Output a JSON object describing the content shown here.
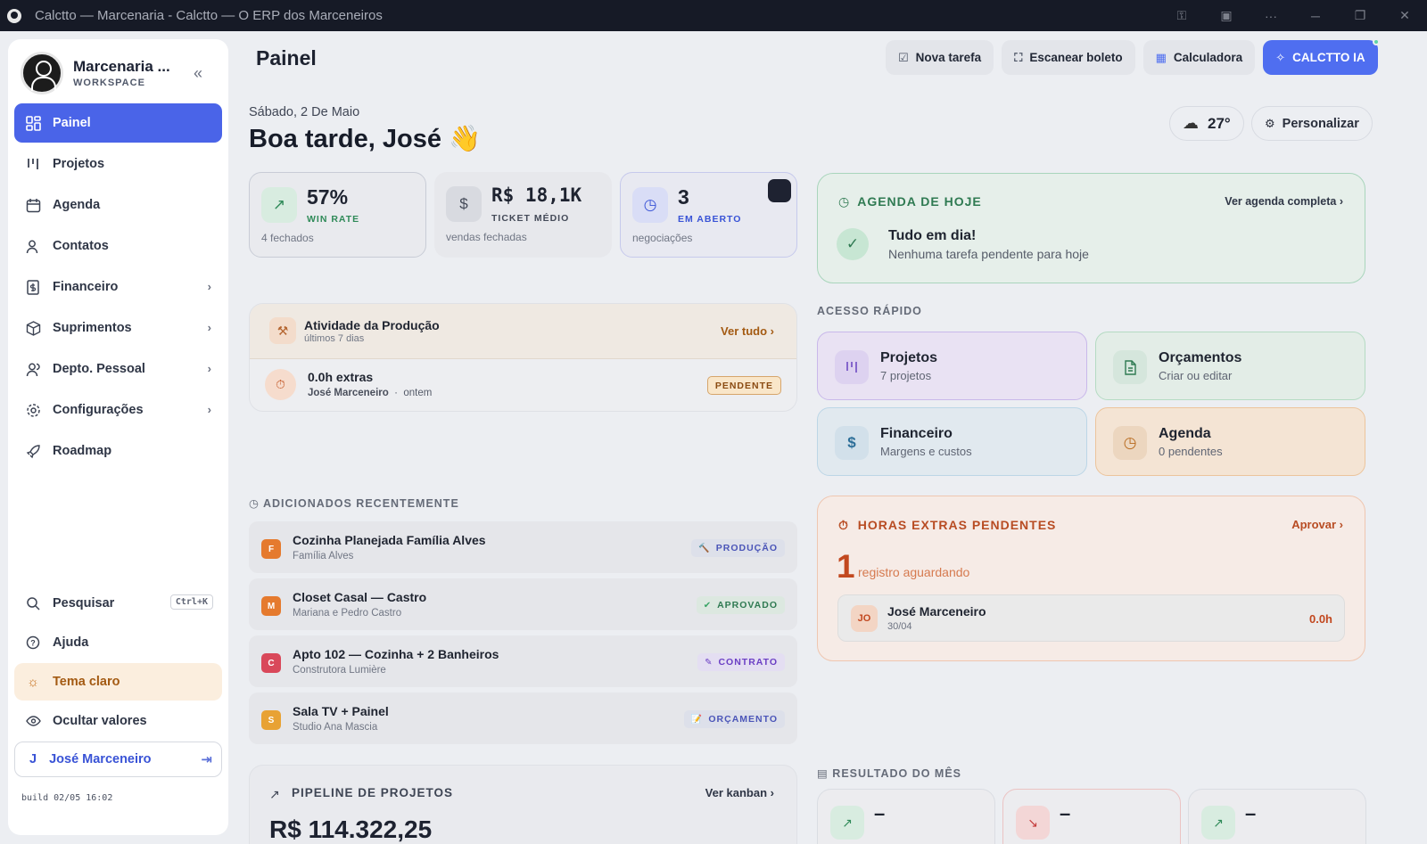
{
  "window": {
    "title": "Calctto — Marcenaria - Calctto — O ERP dos Marceneiros"
  },
  "workspace": {
    "name": "Marcenaria ...",
    "label": "WORKSPACE"
  },
  "nav": [
    {
      "label": "Painel",
      "icon": "dashboard-icon"
    },
    {
      "label": "Projetos",
      "icon": "kanban-icon"
    },
    {
      "label": "Agenda",
      "icon": "calendar-icon"
    },
    {
      "label": "Contatos",
      "icon": "users-icon"
    },
    {
      "label": "Financeiro",
      "icon": "receipt-icon"
    },
    {
      "label": "Suprimentos",
      "icon": "package-icon"
    },
    {
      "label": "Depto. Pessoal",
      "icon": "people-icon"
    },
    {
      "label": "Configurações",
      "icon": "gear-icon"
    },
    {
      "label": "Roadmap",
      "icon": "rocket-icon"
    }
  ],
  "bottom_nav": {
    "search": "Pesquisar",
    "search_shortcut": "Ctrl+K",
    "help": "Ajuda",
    "theme": "Tema claro",
    "hide_values": "Ocultar valores"
  },
  "user": {
    "initial": "J",
    "name": "José Marceneiro"
  },
  "build": "build 02/05 16:02",
  "header": {
    "title": "Painel",
    "actions": [
      "Nova tarefa",
      "Escanear boleto",
      "Calculadora",
      "CALCTTO IA"
    ]
  },
  "greeting": {
    "date": "Sábado, 2 De Maio",
    "text": "Boa tarde, José",
    "emoji": "👋"
  },
  "weather": {
    "temp": "27°"
  },
  "customize": "Personalizar",
  "stats": [
    {
      "value": "57%",
      "label": "WIN RATE",
      "sub": "4 fechados",
      "color": "#2f8a58"
    },
    {
      "value": "R$ 18,1K",
      "label": "TICKET MÉDIO",
      "sub": "vendas fechadas",
      "color": "#444a58"
    },
    {
      "value": "3",
      "label": "EM ABERTO",
      "sub": "negociações",
      "color": "#3953d6"
    }
  ],
  "production": {
    "title": "Atividade da Produção",
    "sub": "últimos 7 dias",
    "link": "Ver tudo",
    "item": {
      "title": "0.0h extras",
      "who": "José Marceneiro",
      "when": "ontem",
      "status": "PENDENTE"
    }
  },
  "recent": {
    "title": "ADICIONADOS RECENTEMENTE",
    "items": [
      {
        "initial": "F",
        "title": "Cozinha Planejada Família Alves",
        "client": "Família Alves",
        "tag": "PRODUÇÃO",
        "tag_color": "#4b55b8",
        "av_color": "#e57a2e"
      },
      {
        "initial": "M",
        "title": "Closet Casal — Castro",
        "client": "Mariana e Pedro Castro",
        "tag": "APROVADO",
        "tag_color": "#2f7a52",
        "av_color": "#e57a2e"
      },
      {
        "initial": "C",
        "title": "Apto 102 — Cozinha + 2 Banheiros",
        "client": "Construtora Lumière",
        "tag": "CONTRATO",
        "tag_color": "#6b3fc4",
        "av_color": "#d9485a"
      },
      {
        "initial": "S",
        "title": "Sala TV + Painel",
        "client": "Studio Ana Mascia",
        "tag": "ORÇAMENTO",
        "tag_color": "#4b55b8",
        "av_color": "#e8a234"
      }
    ]
  },
  "pipeline": {
    "title": "PIPELINE DE PROJETOS",
    "link": "Ver kanban",
    "value": "R$ 114.322,25"
  },
  "agenda": {
    "title": "AGENDA DE HOJE",
    "link": "Ver agenda completa",
    "status": "Tudo em dia!",
    "sub": "Nenhuma tarefa pendente para hoje"
  },
  "quick_access": {
    "title": "ACESSO RÁPIDO",
    "items": [
      {
        "title": "Projetos",
        "sub": "7 projetos"
      },
      {
        "title": "Orçamentos",
        "sub": "Criar ou editar"
      },
      {
        "title": "Financeiro",
        "sub": "Margens e custos"
      },
      {
        "title": "Agenda",
        "sub": "0 pendentes"
      }
    ]
  },
  "overtime": {
    "title": "HORAS EXTRAS PENDENTES",
    "link": "Aprovar",
    "count": "1",
    "desc": "registro aguardando",
    "item": {
      "initials": "JO",
      "name": "José Marceneiro",
      "date": "30/04",
      "hours": "0.0h"
    }
  },
  "month_result": {
    "title": "RESULTADO DO MÊS",
    "values": [
      "–",
      "–",
      "–"
    ]
  }
}
